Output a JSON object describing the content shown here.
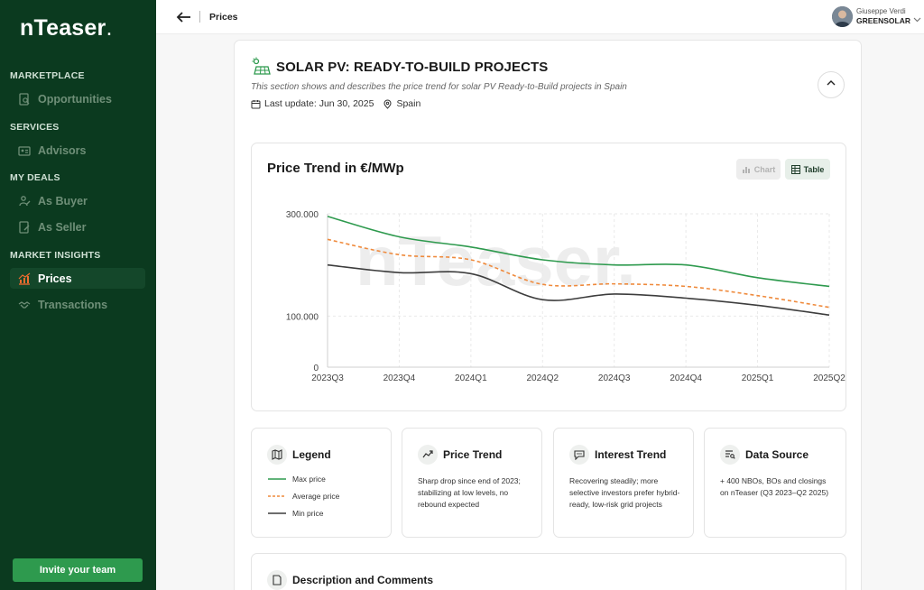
{
  "sidebar": {
    "logo_main": "nTeaser",
    "logo_dot": ".",
    "sections": [
      {
        "title": "MARKETPLACE",
        "items": [
          {
            "label": "Opportunities",
            "icon": "search-doc-icon"
          }
        ]
      },
      {
        "title": "SERVICES",
        "items": [
          {
            "label": "Advisors",
            "icon": "id-card-icon"
          }
        ]
      },
      {
        "title": "MY DEALS",
        "items": [
          {
            "label": "As Buyer",
            "icon": "buyer-icon"
          },
          {
            "label": "As Seller",
            "icon": "seller-icon"
          }
        ]
      },
      {
        "title": "MARKET INSIGHTS",
        "items": [
          {
            "label": "Prices",
            "icon": "chart-icon",
            "active": true
          },
          {
            "label": "Transactions",
            "icon": "handshake-icon"
          }
        ]
      }
    ],
    "invite_label": "Invite your team"
  },
  "topbar": {
    "breadcrumb": "Prices",
    "user_name": "Giuseppe Verdi",
    "user_company": "GREENSOLAR"
  },
  "section": {
    "title": "SOLAR PV: READY-TO-BUILD PROJECTS",
    "subtitle": "This section shows and describes the price trend for solar PV Ready-to-Build projects in Spain",
    "last_update": "Last update: Jun 30, 2025",
    "location": "Spain"
  },
  "chart_card": {
    "title": "Price Trend in €/MWp",
    "toggle_chart": "Chart",
    "toggle_table": "Table",
    "watermark": "nTeaser."
  },
  "chart_data": {
    "type": "line",
    "x": [
      "2023Q3",
      "2023Q4",
      "2024Q1",
      "2024Q2",
      "2024Q3",
      "2024Q4",
      "2025Q1",
      "2025Q2"
    ],
    "yticks": [
      "300.000",
      "100.000",
      "0"
    ],
    "ylim": [
      0,
      300000
    ],
    "series": [
      {
        "name": "Max price",
        "color": "#2e9a4e",
        "style": "solid",
        "values": [
          295000,
          255000,
          235000,
          210000,
          200000,
          200000,
          175000,
          158000
        ]
      },
      {
        "name": "Average price",
        "color": "#ef8a3c",
        "style": "dashed",
        "values": [
          250000,
          220000,
          210000,
          162000,
          163000,
          158000,
          140000,
          117000
        ]
      },
      {
        "name": "Min price",
        "color": "#3d3d3d",
        "style": "solid",
        "values": [
          200000,
          185000,
          183000,
          132000,
          143000,
          135000,
          121000,
          102000
        ]
      }
    ]
  },
  "cards": {
    "legend": {
      "title": "Legend",
      "items": [
        "Max price",
        "Average price",
        "Min price"
      ]
    },
    "price_trend": {
      "title": "Price Trend",
      "text": "Sharp drop since end of 2023; stabilizing at low levels, no rebound expected"
    },
    "interest_trend": {
      "title": "Interest Trend",
      "text": "Recovering steadily; more selective investors prefer hybrid-ready, low-risk grid projects"
    },
    "data_source": {
      "title": "Data Source",
      "text": "+ 400 NBOs, BOs and closings on nTeaser (Q3 2023–Q2 2025)"
    }
  },
  "description": {
    "title": "Description and Comments"
  }
}
